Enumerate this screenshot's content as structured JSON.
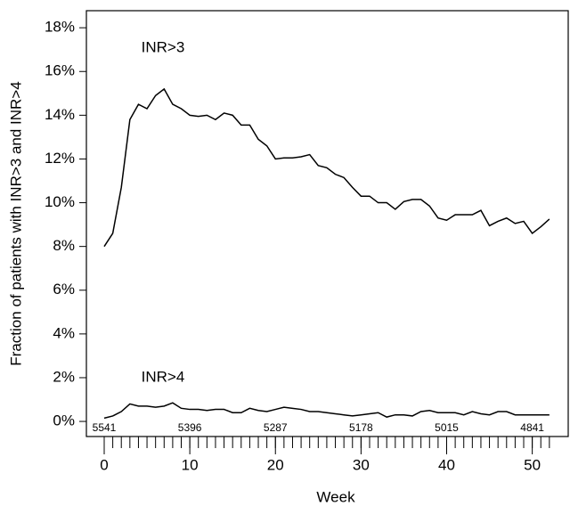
{
  "chart_data": {
    "type": "line",
    "x_label": "Week",
    "y_label": "Fraction of patients with INR>3 and INR>4",
    "x": [
      0,
      1,
      2,
      3,
      4,
      5,
      6,
      7,
      8,
      9,
      10,
      11,
      12,
      13,
      14,
      15,
      16,
      17,
      18,
      19,
      20,
      21,
      22,
      23,
      24,
      25,
      26,
      27,
      28,
      29,
      30,
      31,
      32,
      33,
      34,
      35,
      36,
      37,
      38,
      39,
      40,
      41,
      42,
      43,
      44,
      45,
      46,
      47,
      48,
      49,
      50,
      51,
      52
    ],
    "series": [
      {
        "name": "INR>3",
        "color": "#000000",
        "values": [
          8.0,
          8.6,
          10.7,
          13.8,
          14.5,
          14.3,
          14.9,
          15.2,
          14.5,
          14.3,
          14.0,
          13.95,
          14.0,
          13.8,
          14.1,
          14.0,
          13.55,
          13.55,
          12.9,
          12.6,
          12.0,
          12.05,
          12.05,
          12.1,
          12.2,
          11.7,
          11.6,
          11.3,
          11.15,
          10.7,
          10.3,
          10.3,
          10.0,
          10.0,
          9.7,
          10.05,
          10.15,
          10.15,
          9.85,
          9.3,
          9.2,
          9.45,
          9.45,
          9.45,
          9.65,
          8.95,
          9.15,
          9.3,
          9.05,
          9.15,
          8.6,
          8.9,
          9.25
        ]
      },
      {
        "name": "INR>4",
        "color": "#000000",
        "values": [
          0.15,
          0.25,
          0.45,
          0.8,
          0.7,
          0.7,
          0.65,
          0.7,
          0.85,
          0.6,
          0.55,
          0.55,
          0.5,
          0.55,
          0.55,
          0.4,
          0.4,
          0.6,
          0.5,
          0.45,
          0.55,
          0.65,
          0.6,
          0.55,
          0.45,
          0.45,
          0.4,
          0.35,
          0.3,
          0.25,
          0.3,
          0.35,
          0.4,
          0.2,
          0.3,
          0.3,
          0.25,
          0.45,
          0.5,
          0.4,
          0.4,
          0.4,
          0.3,
          0.45,
          0.35,
          0.3,
          0.45,
          0.45,
          0.3,
          0.3,
          0.3,
          0.3,
          0.3
        ]
      }
    ],
    "at_risk": {
      "x": [
        0,
        10,
        20,
        30,
        40,
        50
      ],
      "values": [
        5541,
        5396,
        5287,
        5178,
        5015,
        4841
      ]
    },
    "xlim": [
      -2.08,
      54.2
    ],
    "ylim": [
      -0.69,
      18.78
    ],
    "xticks": [
      0,
      10,
      20,
      30,
      40,
      50
    ],
    "minor_xticks": [
      0,
      1,
      2,
      3,
      4,
      5,
      6,
      7,
      8,
      9,
      10,
      11,
      12,
      13,
      14,
      15,
      16,
      17,
      18,
      19,
      20,
      21,
      22,
      23,
      24,
      25,
      26,
      27,
      28,
      29,
      30,
      31,
      32,
      33,
      34,
      35,
      36,
      37,
      38,
      39,
      40,
      41,
      42,
      43,
      44,
      45,
      46,
      47,
      48,
      49,
      50,
      51,
      52
    ],
    "yticks": [
      {
        "value": 0,
        "label": "0%"
      },
      {
        "value": 2,
        "label": "2%"
      },
      {
        "value": 4,
        "label": "4%"
      },
      {
        "value": 6,
        "label": "6%"
      },
      {
        "value": 8,
        "label": "8%"
      },
      {
        "value": 10,
        "label": "10%"
      },
      {
        "value": 12,
        "label": "12%"
      },
      {
        "value": 14,
        "label": "14%"
      },
      {
        "value": 16,
        "label": "16%"
      },
      {
        "value": 18,
        "label": "18%"
      }
    ]
  }
}
